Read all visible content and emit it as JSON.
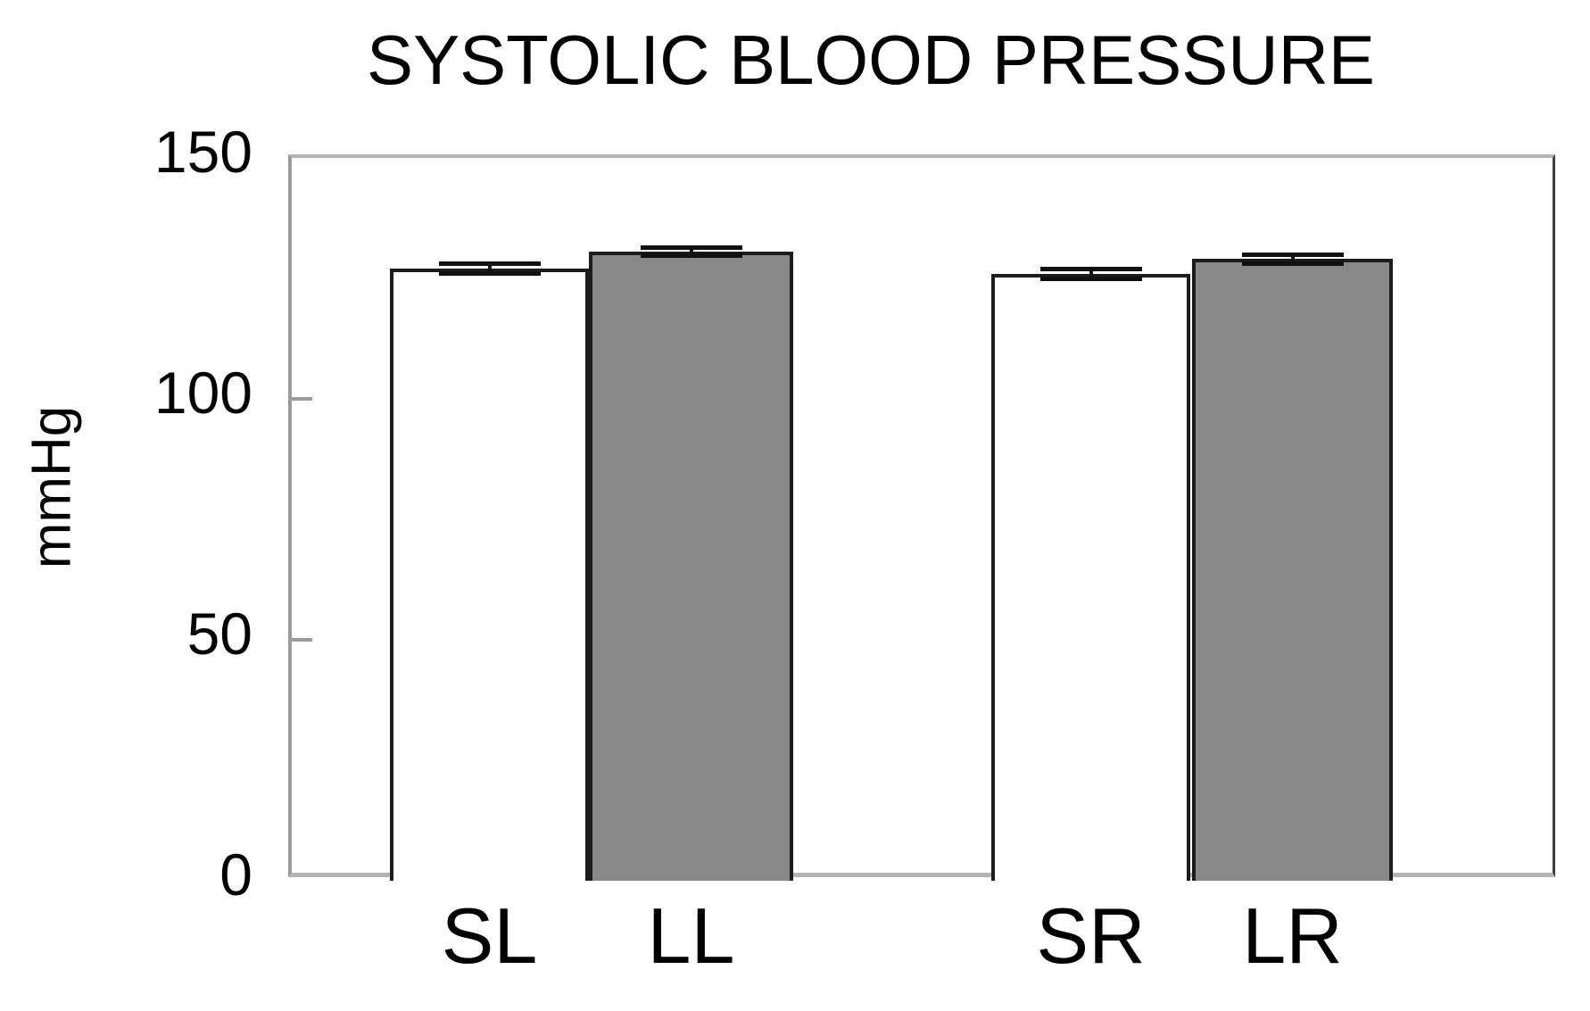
{
  "chart_data": {
    "type": "bar",
    "title": "SYSTOLIC BLOOD PRESSURE",
    "ylabel": "mmHg",
    "xlabel": "",
    "categories": [
      "SL",
      "LL",
      "SR",
      "LR"
    ],
    "values": [
      127,
      130.5,
      126,
      129
    ],
    "errors": [
      1,
      0.8,
      1,
      1
    ],
    "bar_fill_colors": [
      "#ffffff",
      "#888888",
      "#ffffff",
      "#888888"
    ],
    "bar_edge_color": "#1c1c1c",
    "error_bar_color": "#111111",
    "groups": [
      [
        "SL",
        "LL"
      ],
      [
        "SR",
        "LR"
      ]
    ],
    "ylim": [
      0,
      150
    ],
    "yticks": [
      0,
      50,
      100,
      150
    ],
    "grid": false,
    "legend": "none",
    "plot_frame": true
  }
}
